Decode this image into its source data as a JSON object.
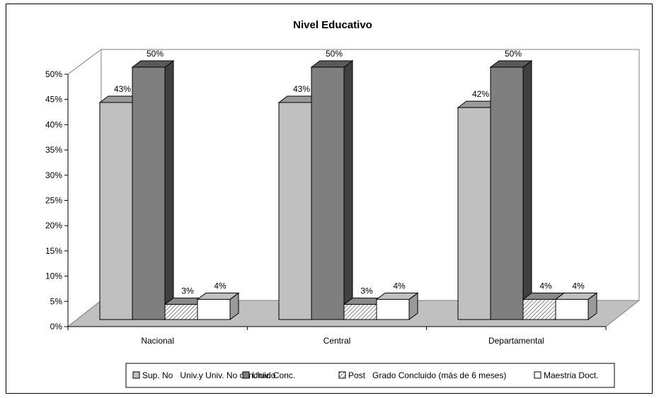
{
  "chart_data": {
    "type": "bar",
    "title": "Nivel Educativo",
    "categories": [
      "Nacional",
      "Central",
      "Departamental"
    ],
    "series": [
      {
        "name": "Sup. No   Univ.y Univ. No concluido",
        "values": [
          43,
          43,
          42
        ],
        "labels": [
          "43%",
          "43%",
          "42%"
        ],
        "color": "#c0c0c0",
        "side_color": "#8a8a8a",
        "top_color": "#9a9a9a"
      },
      {
        "name": "Univ. Conc.",
        "values": [
          50,
          50,
          50
        ],
        "labels": [
          "50%",
          "50%",
          "50%"
        ],
        "color": "#7f7f7f",
        "side_color": "#404040",
        "top_color": "#5a5a5a"
      },
      {
        "name": "Post   Grado Concluido (más de 6 meses)",
        "values": [
          3,
          3,
          4
        ],
        "labels": [
          "3%",
          "3%",
          "4%"
        ],
        "color": "hatch",
        "side_color": "#9a9a9a",
        "top_color": "#8a8a8a"
      },
      {
        "name": "Maestria Doct.",
        "values": [
          4,
          4,
          4
        ],
        "labels": [
          "4%",
          "4%",
          "4%"
        ],
        "color": "#ffffff",
        "side_color": "#9a9a9a",
        "top_color": "#c0c0c0"
      }
    ],
    "yticks": [
      "0%",
      "5%",
      "10%",
      "15%",
      "20%",
      "25%",
      "30%",
      "35%",
      "40%",
      "45%",
      "50%"
    ],
    "ylim": [
      0,
      50
    ],
    "grid": false,
    "legend_position": "bottom",
    "xlabel": "",
    "ylabel": ""
  }
}
